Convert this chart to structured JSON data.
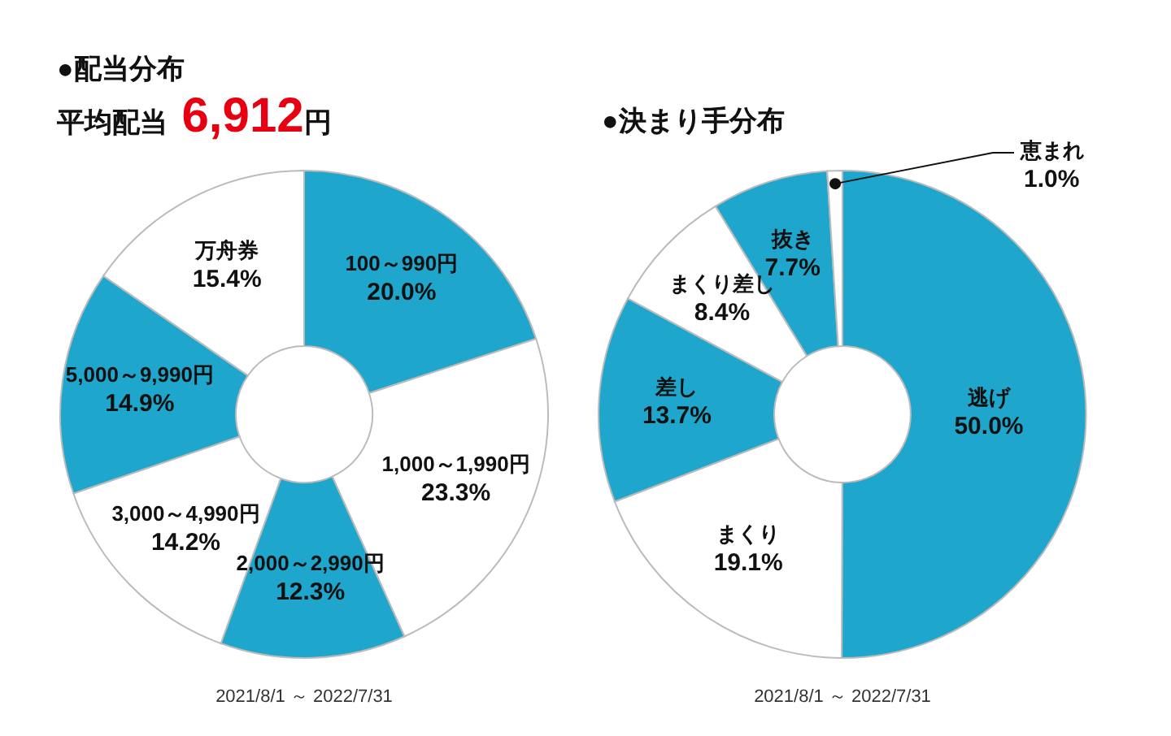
{
  "chart_data": [
    {
      "type": "donut",
      "title": "●配当分布",
      "subtitle": "平均配当 6,912円",
      "categories": [
        "100～990円",
        "1,000～1,990円",
        "2,000～2,990円",
        "3,000～4,990円",
        "5,000～9,990円",
        "万舟券"
      ],
      "values": [
        20.0,
        23.3,
        12.3,
        14.2,
        14.9,
        15.4
      ],
      "colors": [
        "#1fa6cc",
        "#ffffff",
        "#1fa6cc",
        "#ffffff",
        "#1fa6cc",
        "#ffffff"
      ],
      "value_labels": [
        "20.0%",
        "23.3%",
        "12.3%",
        "14.2%",
        "14.9%",
        "15.4%"
      ],
      "legend": false,
      "annotations": [
        "2021/8/1 ～ 2022/7/31"
      ]
    },
    {
      "type": "donut",
      "title": "●決まり手分布",
      "categories": [
        "逃げ",
        "まくり",
        "差し",
        "まくり差し",
        "抜き",
        "恵まれ"
      ],
      "values": [
        50.0,
        19.1,
        13.7,
        8.4,
        7.7,
        1.0
      ],
      "colors": [
        "#1fa6cc",
        "#ffffff",
        "#1fa6cc",
        "#ffffff",
        "#1fa6cc",
        "#ffffff"
      ],
      "value_labels": [
        "50.0%",
        "19.1%",
        "13.7%",
        "8.4%",
        "7.7%",
        "1.0%"
      ],
      "legend": false,
      "annotations": [
        "2021/8/1 ～ 2022/7/31"
      ]
    }
  ]
}
